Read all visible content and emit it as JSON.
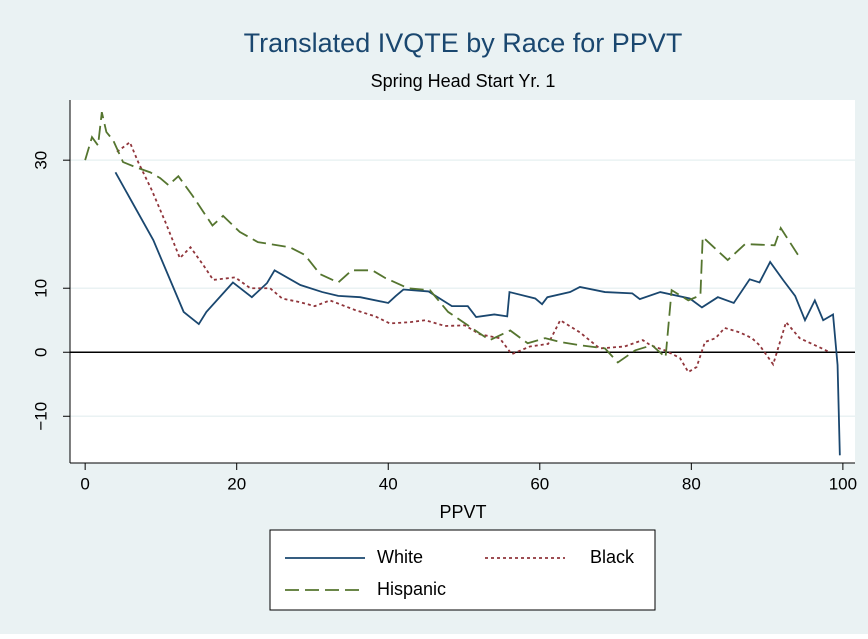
{
  "chart_data": {
    "type": "line",
    "title": "Translated IVQTE by Race for PPVT",
    "subtitle": "Spring Head Start Yr. 1",
    "xlabel": "PPVT",
    "xlim": [
      -2,
      101.6
    ],
    "ylim": [
      -17.3,
      39.4
    ],
    "xticks": [
      0,
      20,
      40,
      60,
      80,
      100
    ],
    "yticks": [
      {
        "value": -10,
        "label": "−10"
      },
      0,
      10,
      30
    ],
    "grid": true,
    "yline": 0,
    "legend": "bottom",
    "series": [
      {
        "name": "White",
        "color": "#1a476f",
        "dash": "none",
        "x": [
          4,
          9,
          13,
          15,
          16,
          19.5,
          22,
          24,
          25,
          28.4,
          31.3,
          33.4,
          36.3,
          40,
          41,
          42,
          45.3,
          48.4,
          50.5,
          51.6,
          54,
          55.7,
          56,
          59.4,
          60.3,
          61,
          64,
          65.3,
          68.6,
          72.2,
          73.2,
          75.9,
          79.8,
          81.4,
          83.5,
          85.6,
          87.7,
          89,
          90.4,
          92.1,
          93.7,
          95,
          96.3,
          97.4,
          98.7,
          99.3,
          99.6
        ],
        "values": [
          28.1,
          17.5,
          6.3,
          4.4,
          6.3,
          10.9,
          8.6,
          10.8,
          12.8,
          10.5,
          9.4,
          8.8,
          8.6,
          7.7,
          8.8,
          9.8,
          9.5,
          7.2,
          7.2,
          5.5,
          5.9,
          5.6,
          9.4,
          8.4,
          7.5,
          8.6,
          9.4,
          10.2,
          9.4,
          9.2,
          8.3,
          9.4,
          8.4,
          7,
          8.6,
          7.7,
          11.4,
          10.9,
          14.1,
          11.3,
          8.8,
          5,
          8.1,
          5,
          5.9,
          -2,
          -16.1
        ]
      },
      {
        "name": "Black",
        "color": "#90353b",
        "dash": "3,3",
        "x": [
          4.2,
          5.9,
          7,
          8.8,
          10.6,
          12.5,
          13.9,
          15.6,
          16.9,
          19.8,
          21.8,
          24.4,
          26,
          28.4,
          30.3,
          32.3,
          35.6,
          38.3,
          40.2,
          42.9,
          44.9,
          47.5,
          50.1,
          52.1,
          54.7,
          56.3,
          58.7,
          61.1,
          62.7,
          65.3,
          67.9,
          71.2,
          73.6,
          74.6,
          76.5,
          78.5,
          79.6,
          80.7,
          81.8,
          83.2,
          84.4,
          86.4,
          88,
          89,
          90.8,
          92.5,
          94.3,
          96.3,
          98.3
        ],
        "values": [
          31.3,
          32.8,
          29.7,
          25.3,
          20.3,
          14.7,
          16.4,
          13.6,
          11.3,
          11.7,
          10,
          10,
          8.4,
          7.8,
          7.2,
          8.1,
          6.6,
          5.6,
          4.5,
          4.7,
          5,
          4.1,
          4.2,
          2.8,
          2.2,
          -0.3,
          0.9,
          1.3,
          5,
          3.1,
          0.6,
          0.9,
          1.9,
          1.1,
          0.3,
          -0.9,
          -3.1,
          -2.3,
          1.6,
          2.2,
          3.8,
          3.1,
          2.2,
          1.1,
          -1.9,
          4.7,
          2.2,
          1.1,
          0
        ]
      },
      {
        "name": "Hispanic",
        "color": "#55752f",
        "dash": "14,6",
        "x": [
          0,
          0.9,
          1.7,
          2.2,
          2.8,
          3.7,
          5,
          6.9,
          8.6,
          9.9,
          11,
          12.3,
          14.2,
          16.8,
          18.2,
          20.4,
          22.8,
          27,
          29,
          31,
          33.4,
          35.2,
          37.9,
          39.6,
          42.6,
          45.5,
          47.9,
          51.5,
          53.4,
          56.1,
          58.4,
          60.7,
          62.7,
          65.3,
          68.6,
          70.3,
          72.6,
          74.8,
          76.6,
          77.4,
          79.6,
          81.2,
          81.5,
          84.8,
          87.1,
          91,
          91.8,
          94.3
        ],
        "values": [
          30,
          33.6,
          32.3,
          37.5,
          34.4,
          33.1,
          29.7,
          28.8,
          28.1,
          27.2,
          26.1,
          27.5,
          24.4,
          19.8,
          21.3,
          18.8,
          17.2,
          16.4,
          15.2,
          12.2,
          10.9,
          12.8,
          12.8,
          11.6,
          10,
          9.7,
          6.3,
          3.4,
          1.9,
          3.4,
          1.4,
          2.2,
          1.6,
          1.1,
          0.6,
          -1.6,
          0.3,
          1.1,
          -0.8,
          9.7,
          8.1,
          8.9,
          18,
          14.4,
          16.9,
          16.7,
          19.4,
          14.8
        ]
      }
    ]
  }
}
